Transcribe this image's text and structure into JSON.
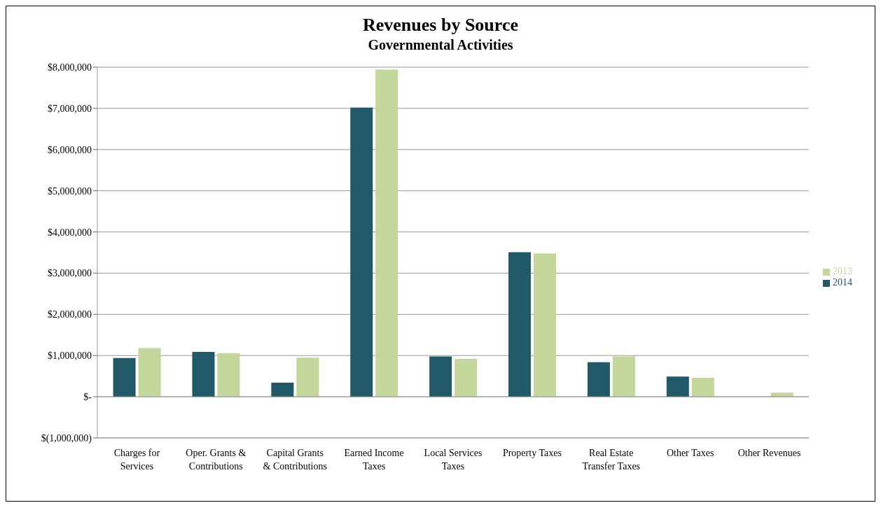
{
  "chart_data": {
    "type": "bar",
    "title": "Revenues by Source",
    "subtitle": "Governmental Activities",
    "categories": [
      "Charges for Services",
      "Oper. Grants & Contributions",
      "Capital Grants & Contributions",
      "Earned Income Taxes",
      "Local Services Taxes",
      "Property Taxes",
      "Real Estate Transfer Taxes",
      "Other Taxes",
      "Other Revenues"
    ],
    "series": [
      {
        "name": "2014",
        "color": "#215968",
        "values": [
          940000,
          1090000,
          340000,
          7020000,
          980000,
          3510000,
          840000,
          490000,
          null
        ]
      },
      {
        "name": "2013",
        "color": "#c3d69b",
        "values": [
          1180000,
          1060000,
          950000,
          7940000,
          920000,
          3480000,
          980000,
          460000,
          100000
        ]
      }
    ],
    "ylim": [
      -1000000,
      8000000
    ],
    "yticks": [
      {
        "value": -1000000,
        "label": "$(1,000,000)"
      },
      {
        "value": 0,
        "label": "$-"
      },
      {
        "value": 1000000,
        "label": "$1,000,000"
      },
      {
        "value": 2000000,
        "label": "$2,000,000"
      },
      {
        "value": 3000000,
        "label": "$3,000,000"
      },
      {
        "value": 4000000,
        "label": "$4,000,000"
      },
      {
        "value": 5000000,
        "label": "$5,000,000"
      },
      {
        "value": 6000000,
        "label": "$6,000,000"
      },
      {
        "value": 7000000,
        "label": "$7,000,000"
      },
      {
        "value": 8000000,
        "label": "$8,000,000"
      }
    ],
    "grid": "y",
    "legend": "right"
  }
}
